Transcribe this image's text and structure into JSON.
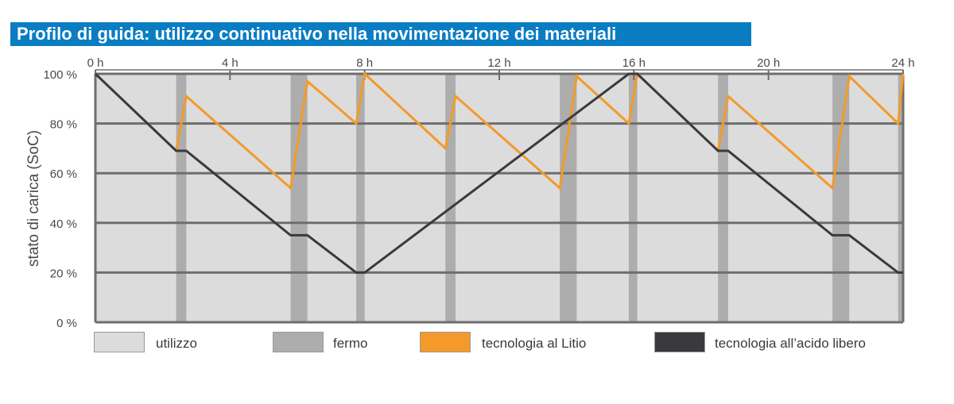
{
  "header": {
    "title": "Profilo di guida: utilizzo continuativo nella movimentazione dei materiali"
  },
  "colors": {
    "title_bg": "#0a7dc2",
    "utilizzo": "#dcdcdc",
    "fermo": "#adadad",
    "litio": "#f39a2b",
    "acido": "#3a3a3c",
    "grid": "#6e6e6e"
  },
  "chart_data": {
    "type": "line",
    "title": "Profilo di guida: utilizzo continuativo nella movimentazione dei materiali",
    "xlabel": "",
    "ylabel": "stato di carica  (SoC)",
    "xlim": [
      0,
      24
    ],
    "ylim": [
      0,
      100
    ],
    "x_ticks": [
      "0 h",
      "4 h",
      "8 h",
      "12 h",
      "16 h",
      "20 h",
      "24 h"
    ],
    "y_ticks": [
      "0 %",
      "20 %",
      "40 %",
      "60 %",
      "80 %",
      "100 %"
    ],
    "grid": true,
    "legend_position": "bottom",
    "fermo_intervals": [
      [
        2.4,
        2.7
      ],
      [
        5.8,
        6.3
      ],
      [
        7.75,
        8.0
      ],
      [
        10.4,
        10.7
      ],
      [
        13.8,
        14.3
      ],
      [
        15.85,
        16.1
      ],
      [
        18.5,
        18.8
      ],
      [
        21.9,
        22.4
      ],
      [
        23.85,
        24.0
      ]
    ],
    "series": [
      {
        "name": "tecnologia al Litio",
        "color": "#f39a2b",
        "points": [
          [
            0,
            100
          ],
          [
            2.4,
            69
          ],
          [
            2.7,
            91
          ],
          [
            5.8,
            54
          ],
          [
            6.3,
            97
          ],
          [
            7.75,
            80
          ],
          [
            8.0,
            100
          ],
          [
            10.4,
            70
          ],
          [
            10.7,
            91
          ],
          [
            13.8,
            54
          ],
          [
            14.3,
            99
          ],
          [
            15.85,
            80
          ],
          [
            16.1,
            100
          ],
          [
            18.5,
            69
          ],
          [
            18.8,
            91
          ],
          [
            21.9,
            54
          ],
          [
            22.4,
            99
          ],
          [
            23.85,
            80
          ],
          [
            24.0,
            100
          ]
        ]
      },
      {
        "name": "tecnologia all’acido libero",
        "color": "#3a3a3c",
        "points": [
          [
            0,
            100
          ],
          [
            2.4,
            69
          ],
          [
            2.7,
            69
          ],
          [
            5.8,
            35
          ],
          [
            6.3,
            35
          ],
          [
            7.75,
            20
          ],
          [
            8.0,
            20
          ],
          [
            15.85,
            100
          ],
          [
            16.1,
            100
          ],
          [
            18.5,
            69
          ],
          [
            18.8,
            69
          ],
          [
            21.9,
            35
          ],
          [
            22.4,
            35
          ],
          [
            23.85,
            20
          ],
          [
            24.0,
            20
          ]
        ]
      }
    ]
  },
  "legend": {
    "items": [
      {
        "label": "utilizzo",
        "color": "#dcdcdc"
      },
      {
        "label": "fermo",
        "color": "#adadad"
      },
      {
        "label": "tecnologia al Litio",
        "color": "#f39a2b"
      },
      {
        "label": "tecnologia all’acido libero",
        "color": "#3a3a3c"
      }
    ]
  }
}
